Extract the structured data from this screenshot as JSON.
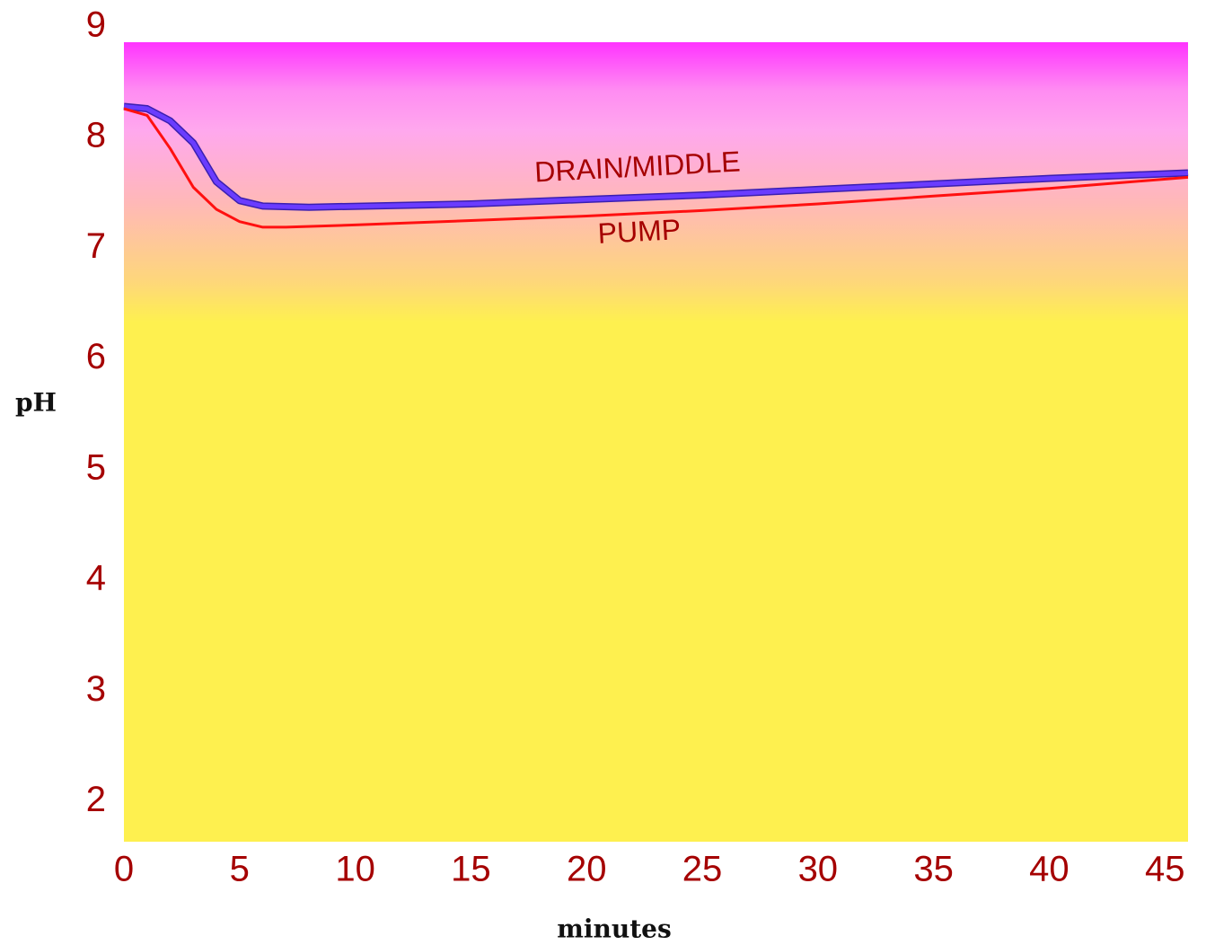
{
  "chart_data": {
    "type": "line",
    "xlabel": "minutes",
    "ylabel": "pH",
    "xlim": [
      0,
      46
    ],
    "xticks": [
      0,
      5,
      10,
      15,
      20,
      25,
      30,
      35,
      40,
      45
    ],
    "ylim": [
      1.64,
      8.86
    ],
    "yticks": [
      2,
      3,
      4,
      5,
      6,
      7,
      8,
      9
    ],
    "series": [
      {
        "name": "DRAIN/MIDDLE",
        "color": "#6a3cff",
        "x": [
          0,
          1,
          2,
          3,
          4,
          5,
          6,
          8,
          15,
          20,
          25,
          30,
          35,
          40,
          46
        ],
        "values": [
          8.28,
          8.26,
          8.15,
          7.95,
          7.6,
          7.43,
          7.38,
          7.37,
          7.4,
          7.44,
          7.48,
          7.53,
          7.58,
          7.63,
          7.68
        ]
      },
      {
        "name": "PUMP",
        "color": "#ff1010",
        "x": [
          0,
          1,
          2,
          3,
          4,
          5,
          6,
          7,
          10,
          15,
          20,
          25,
          30,
          35,
          40,
          46
        ],
        "values": [
          8.26,
          8.2,
          7.9,
          7.55,
          7.35,
          7.24,
          7.19,
          7.19,
          7.21,
          7.25,
          7.29,
          7.34,
          7.4,
          7.47,
          7.54,
          7.64
        ]
      }
    ]
  }
}
